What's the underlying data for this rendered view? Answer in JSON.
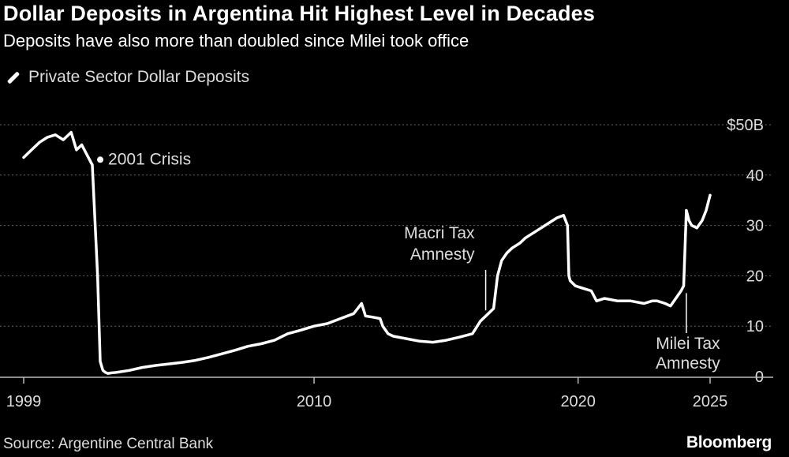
{
  "header": {
    "title": "Dollar Deposits in Argentina Hit Highest Level in Decades",
    "subtitle": "Deposits have also more than doubled since Milei took office"
  },
  "footer": {
    "source": "Source: Argentine Central Bank",
    "brand": "Bloomberg"
  },
  "colors": {
    "background": "#000000",
    "line": "#ffffff",
    "grid": "#666666"
  },
  "chart_data": {
    "type": "line",
    "title": "Dollar Deposits in Argentina Hit Highest Level in Decades",
    "subtitle": "Deposits have also more than doubled since Milei took office",
    "xlabel": "",
    "ylabel": "",
    "x_ticks": [
      {
        "value": 1999,
        "label": "1999"
      },
      {
        "value": 2010,
        "label": "2010"
      },
      {
        "value": 2020,
        "label": "2020"
      },
      {
        "value": 2025,
        "label": "2025"
      }
    ],
    "y_ticks": [
      {
        "value": 0,
        "label": "0"
      },
      {
        "value": 10,
        "label": "10"
      },
      {
        "value": 20,
        "label": "20"
      },
      {
        "value": 30,
        "label": "30"
      },
      {
        "value": 40,
        "label": "40"
      },
      {
        "value": 50,
        "label": "$50B"
      }
    ],
    "xlim": [
      1999,
      2025
    ],
    "ylim": [
      0,
      50
    ],
    "grid": true,
    "legend_position": "top-left",
    "series": [
      {
        "name": "Private Sector Dollar Deposits",
        "x": [
          1999.0,
          1999.3,
          1999.6,
          1999.9,
          2000.2,
          2000.5,
          2000.8,
          2001.0,
          2001.2,
          2001.4,
          2001.6,
          2001.8,
          2001.9,
          2002.0,
          2002.1,
          2002.2,
          2002.3,
          2002.5,
          2003.0,
          2003.5,
          2004.0,
          2004.5,
          2005.0,
          2005.5,
          2006.0,
          2006.5,
          2007.0,
          2007.5,
          2008.0,
          2008.5,
          2009.0,
          2009.5,
          2010.0,
          2010.5,
          2011.0,
          2011.5,
          2011.8,
          2011.95,
          2012.2,
          2012.5,
          2012.6,
          2012.8,
          2013.0,
          2013.5,
          2014.0,
          2014.5,
          2015.0,
          2015.5,
          2016.0,
          2016.3,
          2016.6,
          2016.8,
          2016.95,
          2017.1,
          2017.3,
          2017.5,
          2017.8,
          2018.0,
          2018.3,
          2018.6,
          2018.9,
          2019.2,
          2019.45,
          2019.6,
          2019.65,
          2019.7,
          2019.9,
          2020.2,
          2020.5,
          2020.7,
          2021.0,
          2021.5,
          2022.0,
          2022.5,
          2022.8,
          2023.0,
          2023.3,
          2023.5,
          2023.7,
          2023.9,
          2024.0,
          2024.1,
          2024.15,
          2024.2,
          2024.3,
          2024.5,
          2024.7,
          2024.85,
          2025.0
        ],
        "values": [
          43.5,
          45,
          46.5,
          47.5,
          48,
          47,
          48.5,
          45,
          46,
          44,
          42,
          20,
          3,
          1.2,
          0.8,
          0.6,
          0.7,
          0.8,
          1.2,
          1.8,
          2.2,
          2.5,
          2.8,
          3.2,
          3.8,
          4.5,
          5.2,
          6,
          6.5,
          7.2,
          8.5,
          9.2,
          10,
          10.5,
          11.5,
          12.5,
          14.5,
          12,
          11.8,
          11.5,
          10,
          8.5,
          8,
          7.5,
          7,
          6.8,
          7.2,
          7.8,
          8.5,
          11,
          12.5,
          13.5,
          20,
          23,
          24.5,
          25.5,
          26.5,
          27.5,
          28.5,
          29.5,
          30.5,
          31.5,
          32,
          30,
          20,
          19,
          18,
          17.5,
          17,
          15,
          15.5,
          15,
          15,
          14.5,
          15,
          15,
          14.5,
          14,
          15.5,
          17,
          18,
          33,
          32,
          31,
          30,
          29.5,
          31,
          33,
          36
        ]
      }
    ],
    "annotations": [
      {
        "x": 2001.9,
        "y": 44,
        "lines": [
          "2001 Crisis"
        ]
      },
      {
        "x": 2016.5,
        "y": 12.5,
        "lines": [
          "Macri Tax",
          "Amnesty"
        ]
      },
      {
        "x": 2024.1,
        "y": 17.5,
        "lines": [
          "Milei Tax",
          "Amnesty"
        ]
      }
    ]
  }
}
